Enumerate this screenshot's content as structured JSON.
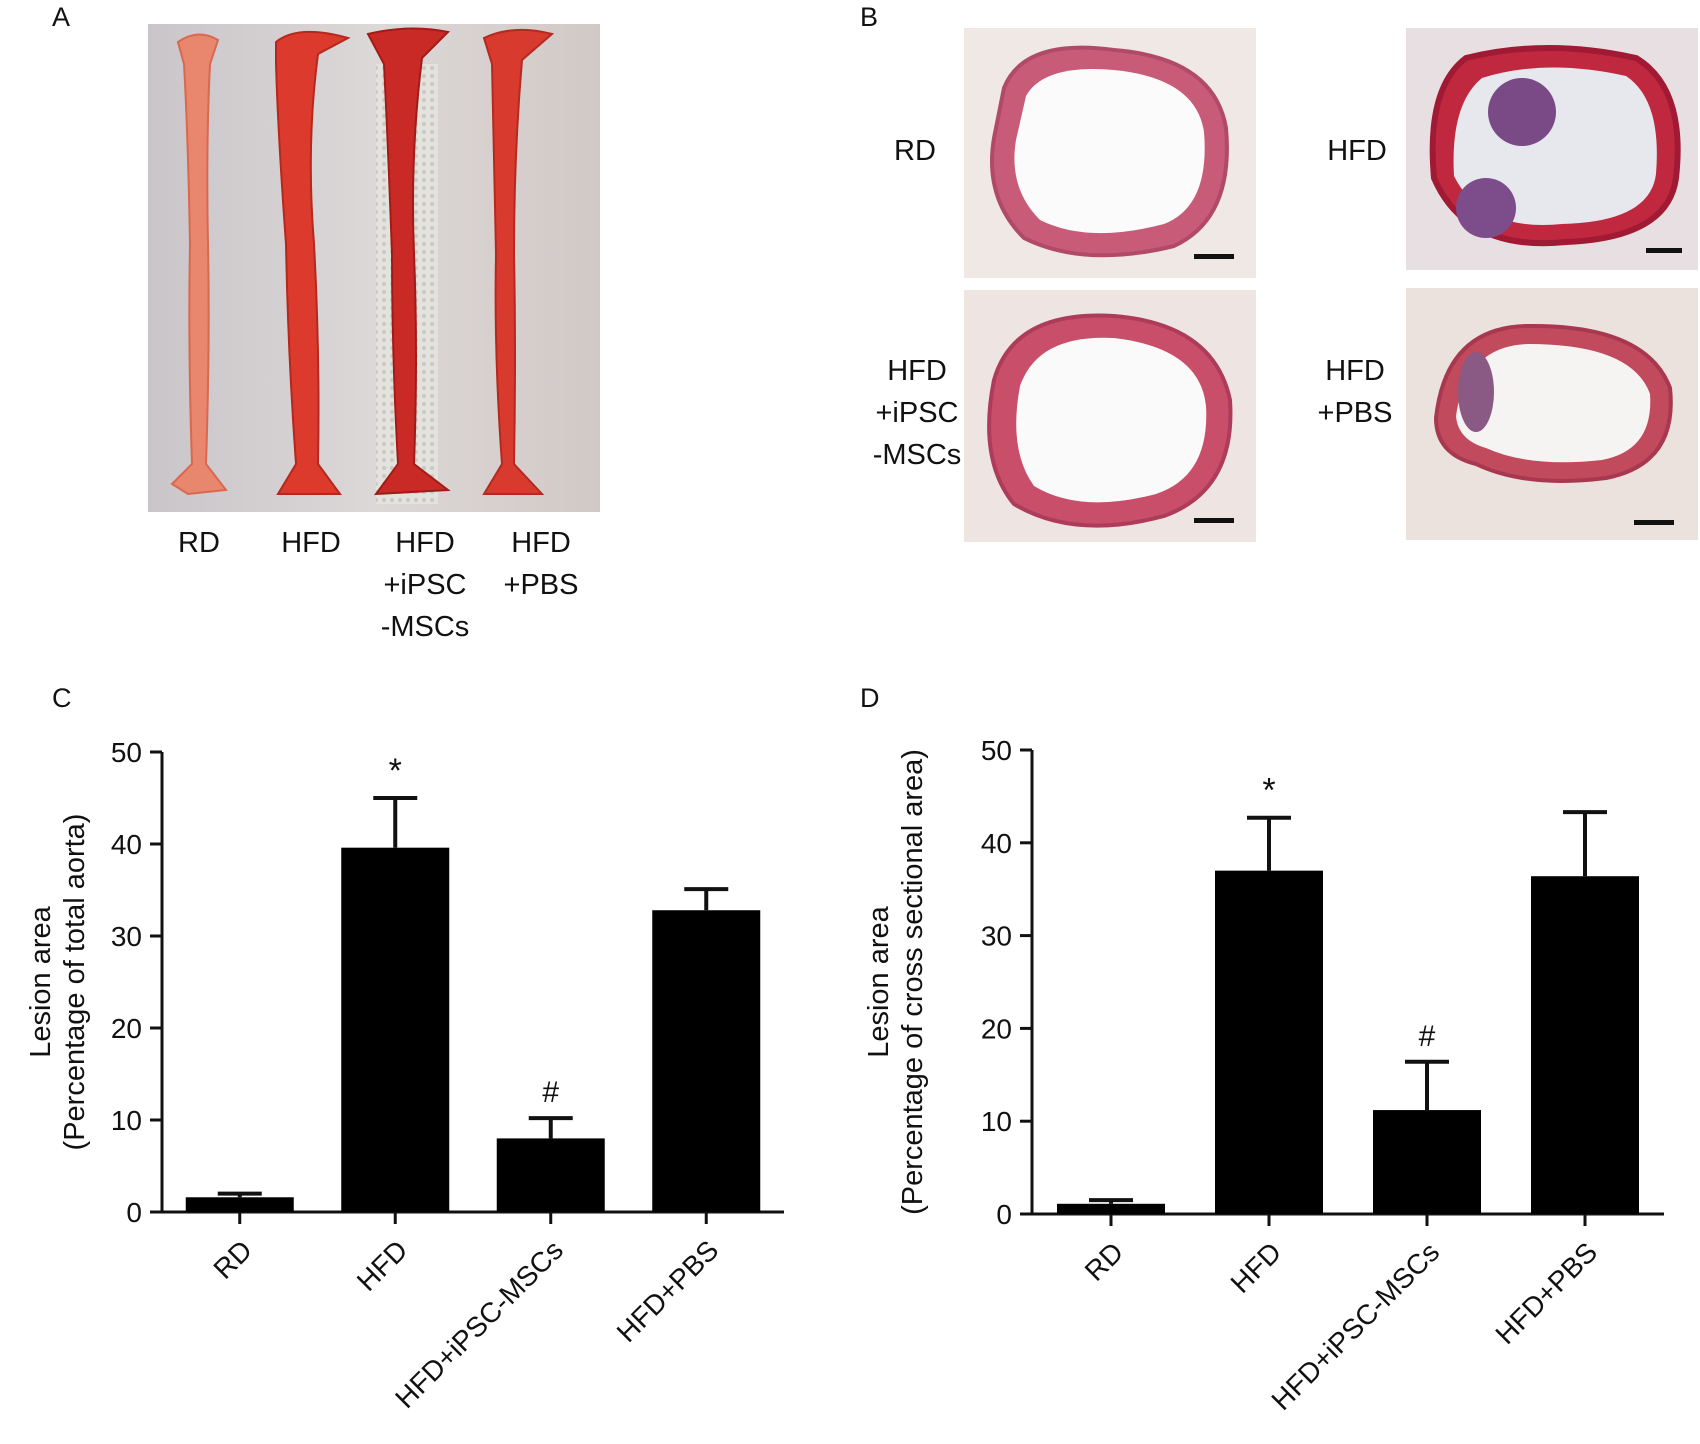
{
  "panels": {
    "a": {
      "letter": "A",
      "lanes": [
        {
          "label_lines": [
            "RD"
          ]
        },
        {
          "label_lines": [
            "HFD"
          ]
        },
        {
          "label_lines": [
            "HFD",
            "+iPSC",
            "-MSCs"
          ]
        },
        {
          "label_lines": [
            "HFD",
            "+PBS"
          ]
        }
      ]
    },
    "b": {
      "letter": "B",
      "sections": [
        {
          "label_lines": [
            "RD"
          ]
        },
        {
          "label_lines": [
            "HFD"
          ]
        },
        {
          "label_lines": [
            "HFD",
            "+iPSC",
            "-MSCs"
          ]
        },
        {
          "label_lines": [
            "HFD",
            "+PBS"
          ]
        }
      ]
    },
    "c": {
      "letter": "C"
    },
    "d": {
      "letter": "D"
    }
  },
  "chart_data": [
    {
      "panel": "C",
      "type": "bar",
      "categories": [
        "RD",
        "HFD",
        "HFD+iPSC-MSCs",
        "HFD+PBS"
      ],
      "values": [
        1.6,
        39.6,
        8.0,
        32.8
      ],
      "errors": [
        0.4,
        5.4,
        2.2,
        2.3
      ],
      "annotations": [
        "",
        "*",
        "#",
        ""
      ],
      "ylabel_lines": [
        "Lesion area",
        "(Percentage of total aorta)"
      ],
      "xlabel": "",
      "ylim": [
        0,
        50
      ],
      "yticks": [
        0,
        10,
        20,
        30,
        40,
        50
      ],
      "bar_color": "#000000"
    },
    {
      "panel": "D",
      "type": "bar",
      "categories": [
        "RD",
        "HFD",
        "HFD+iPSC-MSCs",
        "HFD+PBS"
      ],
      "values": [
        1.1,
        37.0,
        11.2,
        36.4
      ],
      "errors": [
        0.4,
        5.7,
        5.2,
        6.9
      ],
      "annotations": [
        "",
        "*",
        "#",
        ""
      ],
      "ylabel_lines": [
        "Lesion area",
        "(Percentage of cross sectional area)"
      ],
      "xlabel": "",
      "ylim": [
        0,
        50
      ],
      "yticks": [
        0,
        10,
        20,
        30,
        40,
        50
      ],
      "bar_color": "#000000"
    }
  ]
}
